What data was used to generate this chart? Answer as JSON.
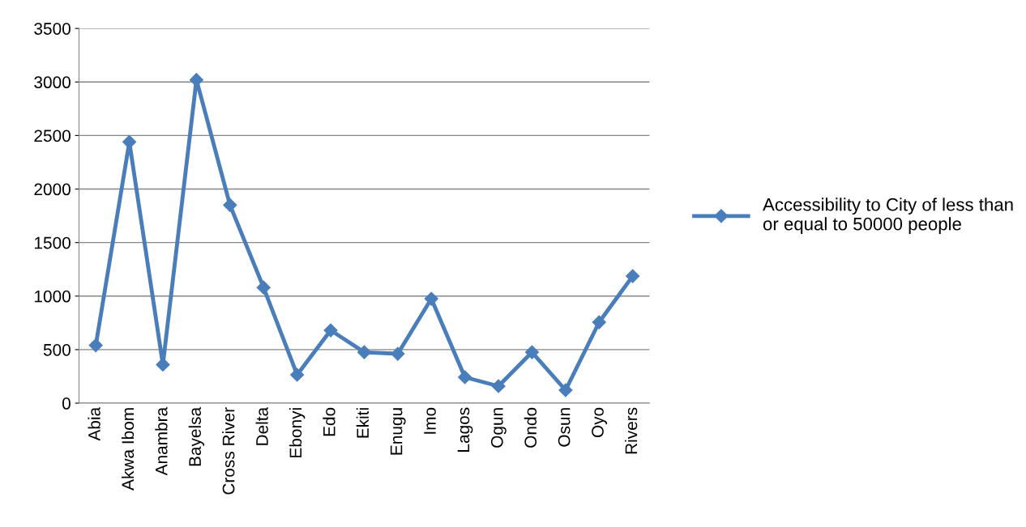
{
  "chart_data": {
    "type": "line",
    "categories": [
      "Abia",
      "Akwa Ibom",
      "Anambra",
      "Bayelsa",
      "Cross River",
      "Delta",
      "Ebonyi",
      "Edo",
      "Ekiti",
      "Enugu",
      "Imo",
      "Lagos",
      "Ogun",
      "Ondo",
      "Osun",
      "Oyo",
      "Rivers"
    ],
    "series": [
      {
        "name": "Accessibility to City of less than or equal to 50000 people",
        "color": "#4a7ebb",
        "values": [
          540,
          2440,
          360,
          3020,
          1850,
          1080,
          265,
          680,
          476,
          461,
          975,
          242,
          159,
          476,
          121,
          756,
          1187
        ]
      }
    ],
    "ylim": [
      0,
      3500
    ],
    "yticks": [
      0,
      500,
      1000,
      1500,
      2000,
      2500,
      3000,
      3500
    ],
    "grid": "y",
    "legend": "right",
    "marker": "diamond",
    "line_style": "solid"
  }
}
